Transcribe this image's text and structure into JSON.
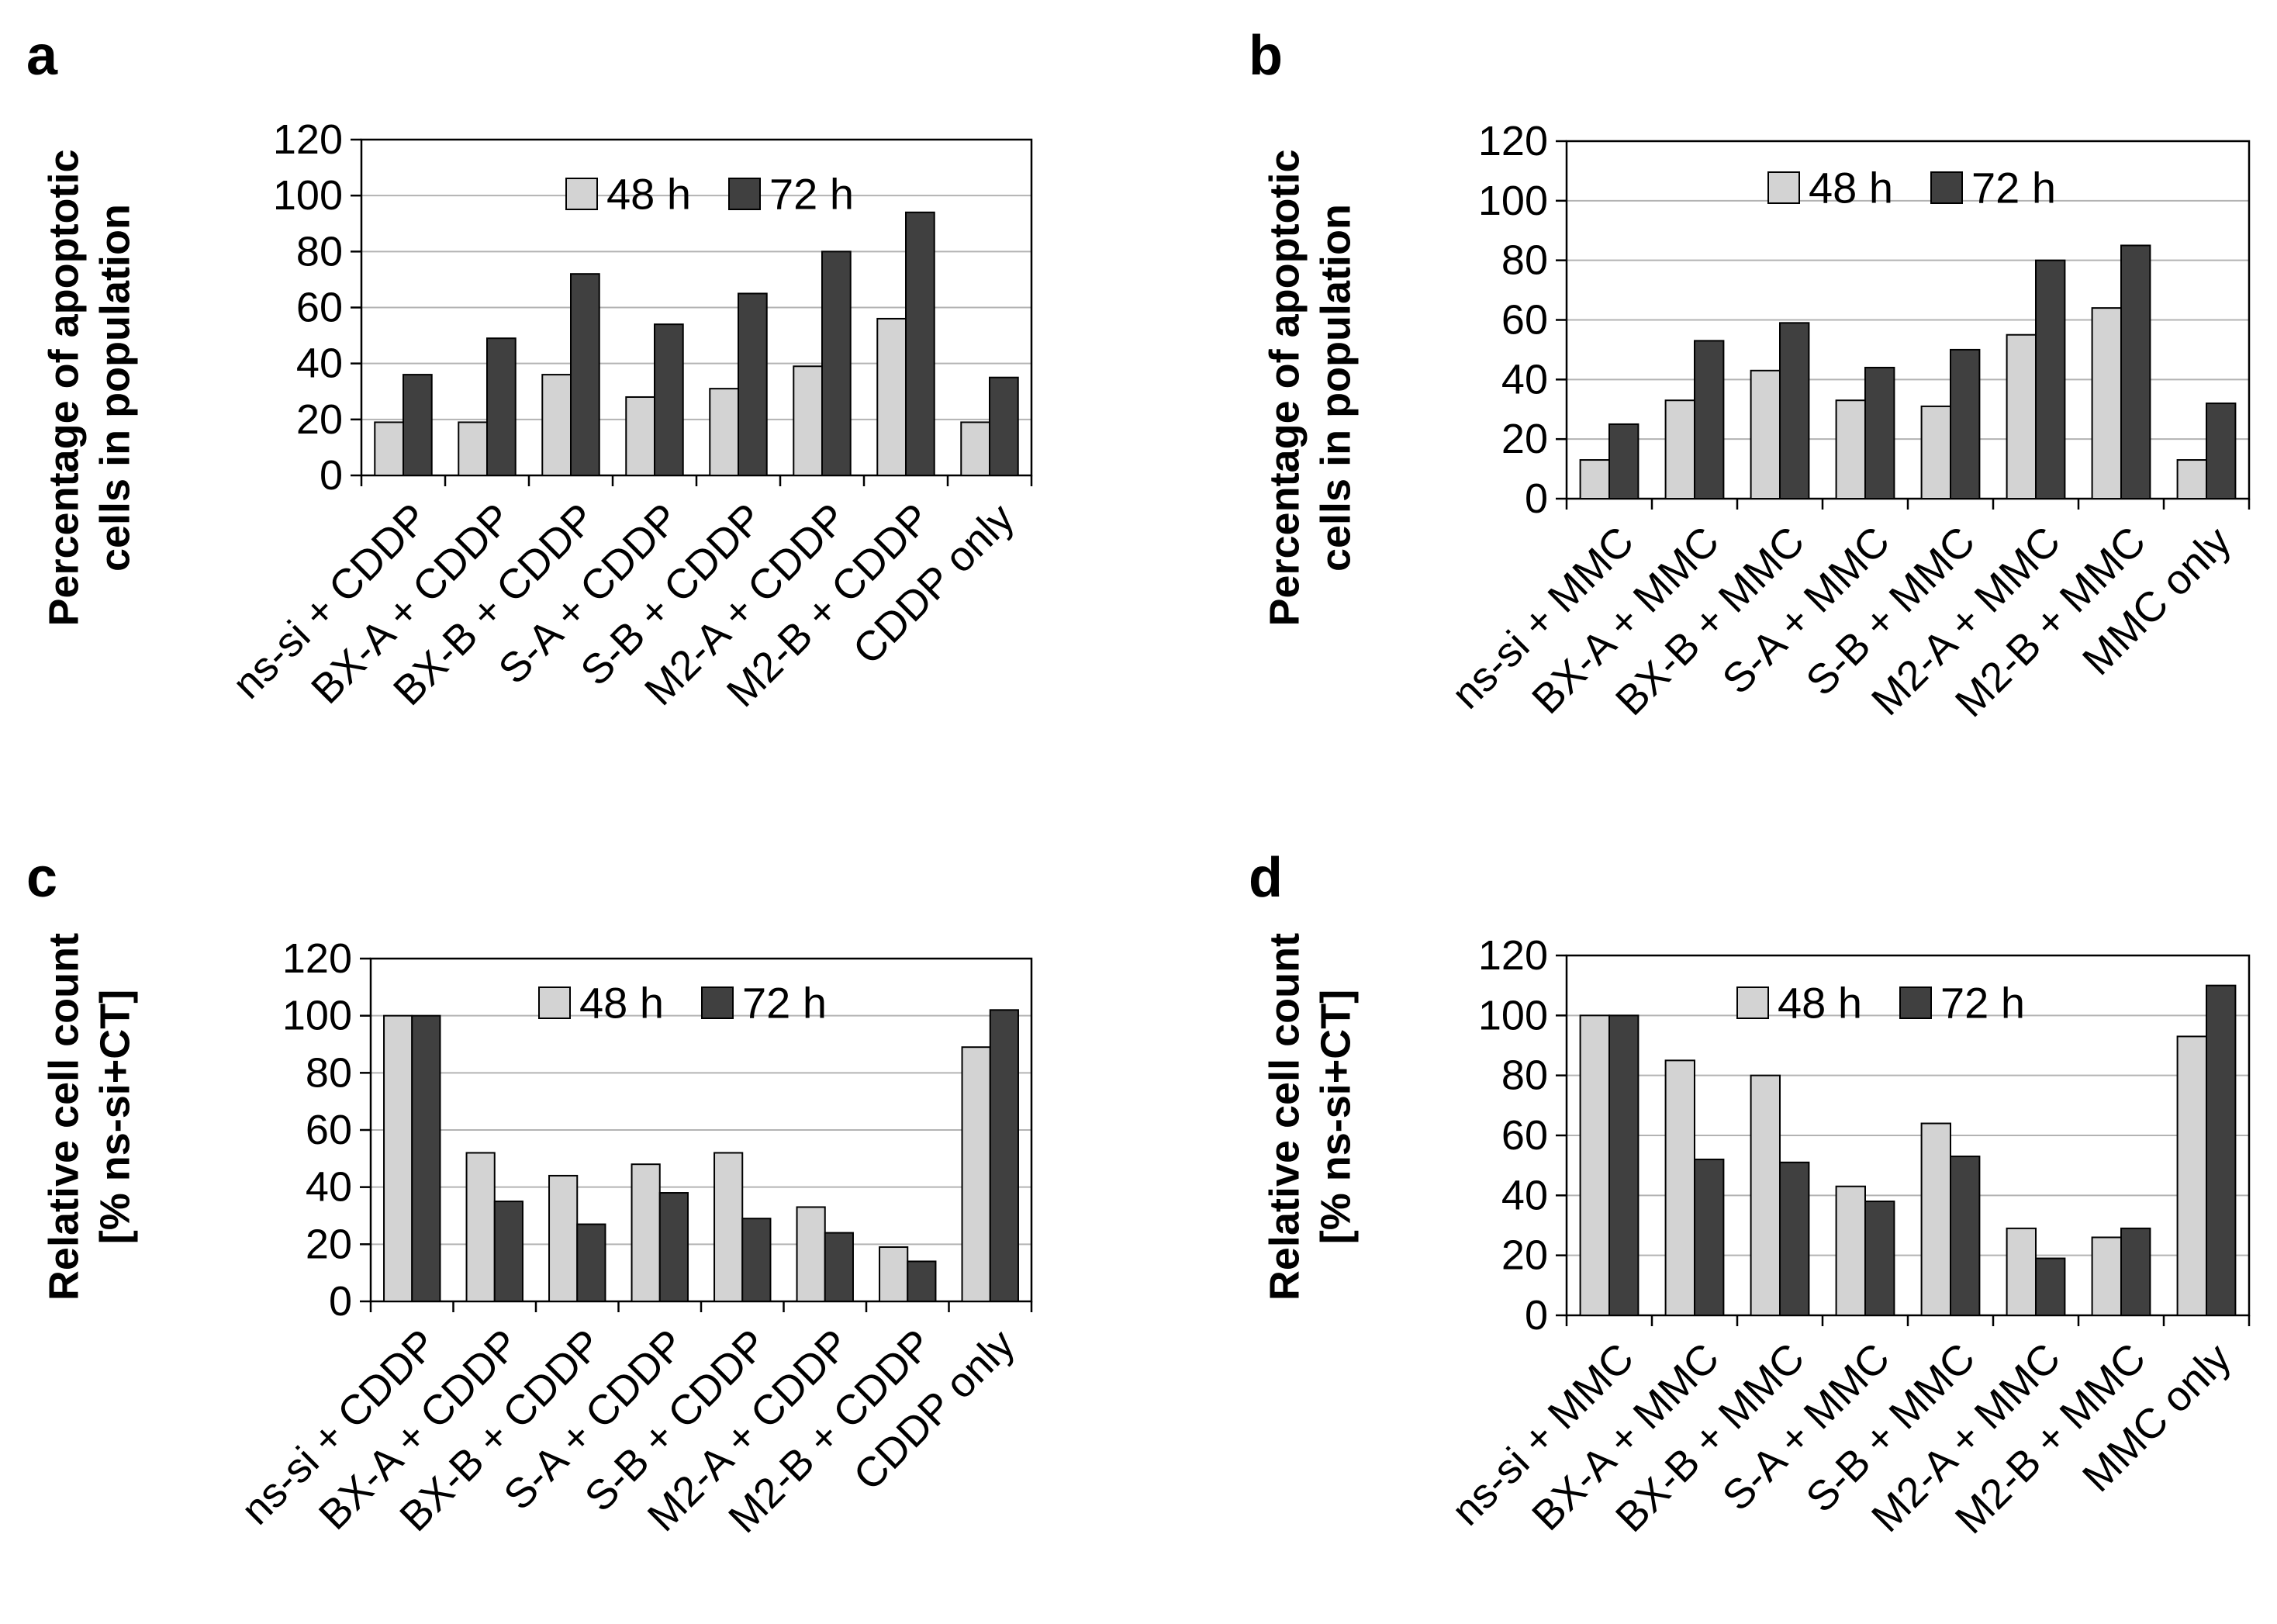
{
  "colors": {
    "series_48h": "#d3d3d3",
    "series_72h": "#404040",
    "grid": "#b3b3b3",
    "axis": "#000000"
  },
  "chart_data": [
    {
      "panel": "a",
      "type": "bar",
      "ylabel_lines": [
        "Percentage of apoptotic",
        "cells in population"
      ],
      "categories": [
        "ns-si + CDDP",
        "BX-A + CDDP",
        "BX-B + CDDP",
        "S-A + CDDP",
        "S-B + CDDP",
        "M2-A + CDDP",
        "M2-B + CDDP",
        "CDDP only"
      ],
      "series": [
        {
          "name": "48 h",
          "values": [
            19,
            19,
            36,
            28,
            31,
            39,
            56,
            19
          ]
        },
        {
          "name": "72 h",
          "values": [
            36,
            49,
            72,
            54,
            65,
            80,
            94,
            35
          ]
        }
      ],
      "ylim": [
        0,
        120
      ],
      "yticks": [
        0,
        20,
        40,
        60,
        80,
        100,
        120
      ],
      "grid": true,
      "legend": "top-center"
    },
    {
      "panel": "b",
      "type": "bar",
      "ylabel_lines": [
        "Percentage of apoptotic",
        "cells in population"
      ],
      "categories": [
        "ns-si + MMC",
        "BX-A + MMC",
        "BX-B + MMC",
        "S-A + MMC",
        "S-B + MMC",
        "M2-A + MMC",
        "M2-B + MMC",
        "MMC only"
      ],
      "series": [
        {
          "name": "48 h",
          "values": [
            13,
            33,
            43,
            33,
            31,
            55,
            64,
            13
          ]
        },
        {
          "name": "72 h",
          "values": [
            25,
            53,
            59,
            44,
            50,
            80,
            85,
            32
          ]
        }
      ],
      "ylim": [
        0,
        120
      ],
      "yticks": [
        0,
        20,
        40,
        60,
        80,
        100,
        120
      ],
      "grid": true,
      "legend": "top-center"
    },
    {
      "panel": "c",
      "type": "bar",
      "ylabel_lines": [
        "Relative cell count",
        "[% ns-si+CT]"
      ],
      "categories": [
        "ns-si + CDDP",
        "BX-A + CDDP",
        "BX-B + CDDP",
        "S-A + CDDP",
        "S-B + CDDP",
        "M2-A + CDDP",
        "M2-B + CDDP",
        "CDDP only"
      ],
      "series": [
        {
          "name": "48 h",
          "values": [
            100,
            52,
            44,
            48,
            52,
            33,
            19,
            89
          ]
        },
        {
          "name": "72 h",
          "values": [
            100,
            35,
            27,
            38,
            29,
            24,
            14,
            102
          ]
        }
      ],
      "ylim": [
        0,
        120
      ],
      "yticks": [
        0,
        20,
        40,
        60,
        80,
        100,
        120
      ],
      "grid": true,
      "legend": "top-center"
    },
    {
      "panel": "d",
      "type": "bar",
      "ylabel_lines": [
        "Relative cell count",
        "[% ns-si+CT]"
      ],
      "categories": [
        "ns-si + MMC",
        "BX-A + MMC",
        "BX-B + MMC",
        "S-A + MMC",
        "S-B + MMC",
        "M2-A + MMC",
        "M2-B + MMC",
        "MMC only"
      ],
      "series": [
        {
          "name": "48 h",
          "values": [
            100,
            85,
            80,
            43,
            64,
            29,
            26,
            93
          ]
        },
        {
          "name": "72 h",
          "values": [
            100,
            52,
            51,
            38,
            53,
            19,
            29,
            110
          ]
        }
      ],
      "ylim": [
        0,
        120
      ],
      "yticks": [
        0,
        20,
        40,
        60,
        80,
        100,
        120
      ],
      "grid": true,
      "legend": "top-center"
    }
  ]
}
